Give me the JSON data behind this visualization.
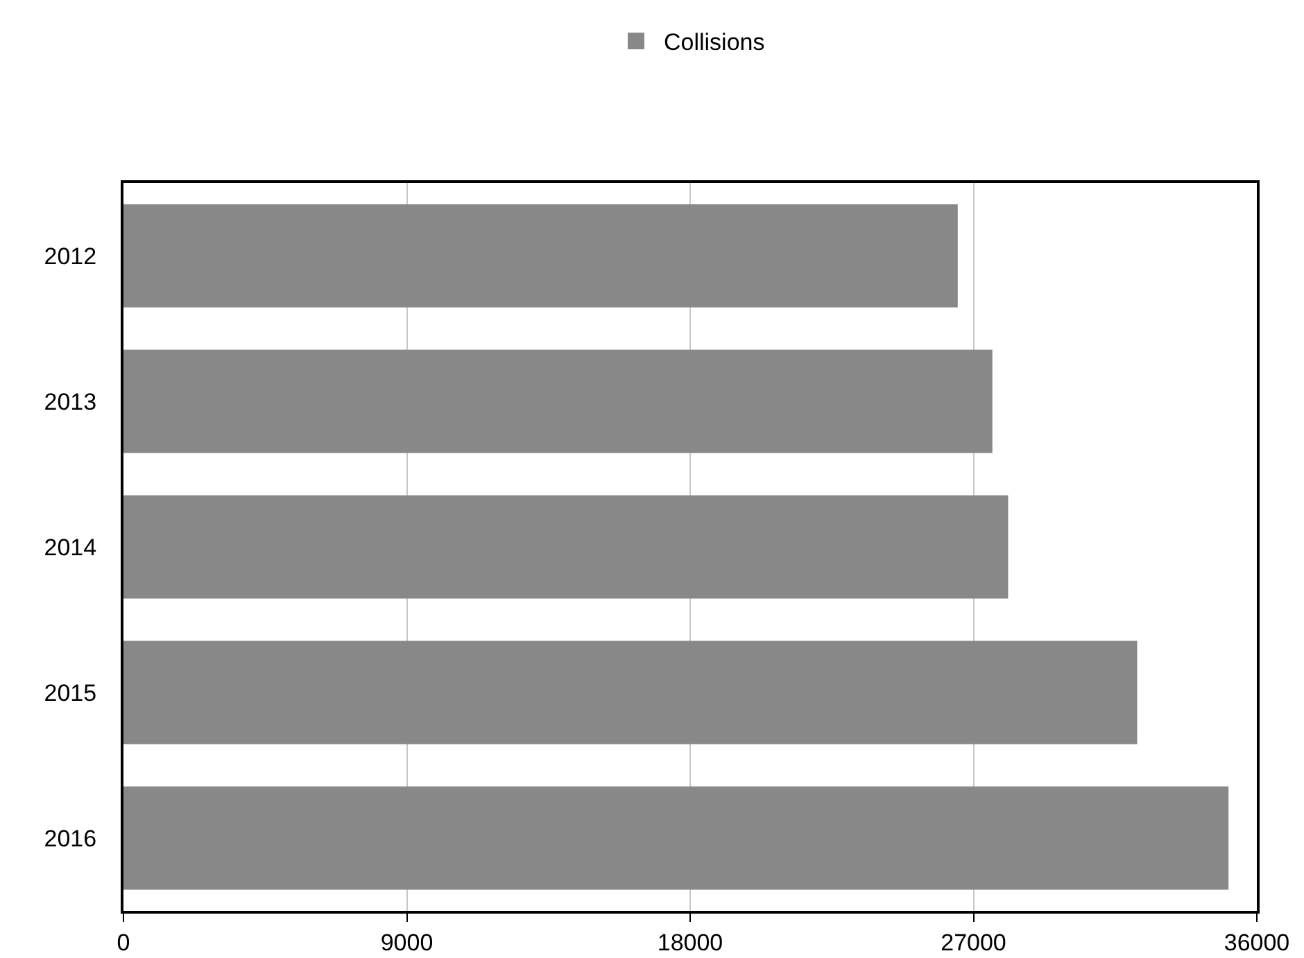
{
  "chart_data": {
    "type": "bar",
    "orientation": "horizontal",
    "categories": [
      "2012",
      "2013",
      "2014",
      "2015",
      "2016"
    ],
    "series": [
      {
        "name": "Collisions",
        "color": "#878887",
        "values": [
          26500,
          27600,
          28100,
          32200,
          35100
        ]
      }
    ],
    "xlim": [
      0,
      36000
    ],
    "xticks": [
      0,
      9000,
      18000,
      27000,
      36000
    ],
    "grid": "x",
    "legend": "top"
  }
}
